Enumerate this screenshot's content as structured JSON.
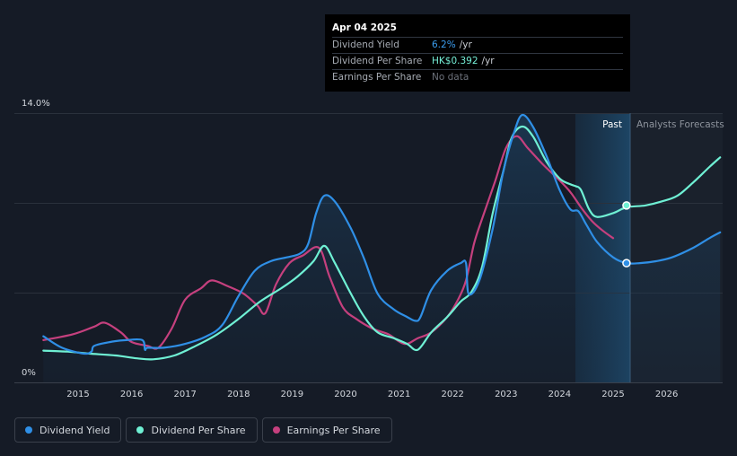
{
  "chart_data": {
    "type": "line",
    "y_axis": {
      "top_label": "14.0%",
      "bottom_label": "0%",
      "ylim": [
        0,
        14
      ]
    },
    "x_axis": {
      "tick_labels": [
        "2015",
        "2016",
        "2017",
        "2018",
        "2019",
        "2020",
        "2021",
        "2022",
        "2023",
        "2024",
        "2025",
        "2026"
      ]
    },
    "zones": {
      "past_label": "Past",
      "forecast_label": "Analysts Forecasts"
    },
    "series": [
      {
        "name": "Dividend Yield",
        "color": "#2f8fe6",
        "x": [
          2014.35,
          2014.7,
          2015.1,
          2015.25,
          2015.3,
          2015.6,
          2015.9,
          2016.2,
          2016.25,
          2016.3,
          2016.6,
          2017.0,
          2017.4,
          2017.7,
          2018.0,
          2018.3,
          2018.6,
          2018.9,
          2019.15,
          2019.3,
          2019.45,
          2019.6,
          2019.8,
          2020.1,
          2020.35,
          2020.6,
          2020.9,
          2021.15,
          2021.3,
          2021.4,
          2021.6,
          2021.9,
          2022.15,
          2022.25,
          2022.3,
          2022.5,
          2022.75,
          2022.95,
          2023.15,
          2023.3,
          2023.5,
          2023.75,
          2024.0,
          2024.2,
          2024.35,
          2024.5,
          2024.7,
          2025.0,
          2025.25,
          2025.5,
          2025.8,
          2026.1,
          2026.5,
          2026.8,
          2027.0
        ],
        "y": [
          2.4,
          1.8,
          1.5,
          1.6,
          1.9,
          2.1,
          2.2,
          2.2,
          1.7,
          1.8,
          1.8,
          2.0,
          2.4,
          3.0,
          4.5,
          5.8,
          6.3,
          6.5,
          6.7,
          7.2,
          8.8,
          9.7,
          9.4,
          8.0,
          6.4,
          4.6,
          3.8,
          3.4,
          3.2,
          3.4,
          4.8,
          5.8,
          6.2,
          6.2,
          4.6,
          5.3,
          8.0,
          11.0,
          13.0,
          13.9,
          13.3,
          11.8,
          10.0,
          9.0,
          8.9,
          8.2,
          7.3,
          6.5,
          6.2,
          6.2,
          6.3,
          6.5,
          7.0,
          7.5,
          7.8
        ]
      },
      {
        "name": "Dividend Per Share",
        "color": "#6ff0d4",
        "x": [
          2014.35,
          2014.8,
          2015.2,
          2015.7,
          2016.1,
          2016.4,
          2016.8,
          2017.2,
          2017.6,
          2018.0,
          2018.4,
          2018.8,
          2019.1,
          2019.4,
          2019.6,
          2019.8,
          2020.1,
          2020.35,
          2020.6,
          2020.9,
          2021.15,
          2021.35,
          2021.6,
          2021.9,
          2022.15,
          2022.35,
          2022.55,
          2022.75,
          2022.95,
          2023.1,
          2023.3,
          2023.5,
          2023.75,
          2024.0,
          2024.2,
          2024.3,
          2024.4,
          2024.55,
          2024.7,
          2025.0,
          2025.25,
          2025.6,
          2025.9,
          2026.2,
          2026.5,
          2026.8,
          2027.0
        ],
        "y": [
          1.65,
          1.6,
          1.5,
          1.4,
          1.25,
          1.2,
          1.4,
          1.9,
          2.5,
          3.3,
          4.2,
          4.9,
          5.5,
          6.3,
          7.1,
          6.2,
          4.6,
          3.4,
          2.6,
          2.3,
          2.0,
          1.7,
          2.6,
          3.4,
          4.2,
          4.7,
          6.0,
          8.8,
          11.0,
          12.7,
          13.3,
          12.8,
          11.5,
          10.6,
          10.3,
          10.2,
          10.0,
          9.0,
          8.6,
          8.8,
          9.1,
          9.2,
          9.4,
          9.7,
          10.4,
          11.2,
          11.7
        ]
      },
      {
        "name": "Earnings Per Share",
        "color": "#c5407e",
        "x": [
          2014.35,
          2014.9,
          2015.3,
          2015.5,
          2015.8,
          2016.0,
          2016.3,
          2016.5,
          2016.75,
          2017.0,
          2017.3,
          2017.5,
          2017.8,
          2018.1,
          2018.35,
          2018.5,
          2018.7,
          2018.95,
          2019.2,
          2019.5,
          2019.7,
          2019.95,
          2020.2,
          2020.5,
          2020.8,
          2021.1,
          2021.35,
          2021.6,
          2021.9,
          2022.1,
          2022.25,
          2022.4,
          2022.55,
          2022.8,
          2023.0,
          2023.2,
          2023.4,
          2023.7,
          2024.0,
          2024.2,
          2024.4,
          2024.6,
          2024.8,
          2025.0
        ],
        "y": [
          2.2,
          2.5,
          2.9,
          3.1,
          2.6,
          2.1,
          1.9,
          1.8,
          2.8,
          4.3,
          4.9,
          5.3,
          5.0,
          4.6,
          4.0,
          3.6,
          5.1,
          6.2,
          6.6,
          7.0,
          5.5,
          3.9,
          3.3,
          2.8,
          2.5,
          2.0,
          2.3,
          2.6,
          3.4,
          4.3,
          5.3,
          7.2,
          8.5,
          10.5,
          12.2,
          12.8,
          12.2,
          11.3,
          10.5,
          9.9,
          9.1,
          8.4,
          7.9,
          7.5
        ]
      }
    ],
    "markers": [
      {
        "series": "Dividend Yield",
        "x": 2025.25,
        "y": 6.2
      },
      {
        "series": "Dividend Per Share",
        "x": 2025.25,
        "y": 9.2
      }
    ]
  },
  "tooltip": {
    "date": "Apr 04 2025",
    "rows": [
      {
        "label": "Dividend Yield",
        "value": "6.2%",
        "unit": "/yr"
      },
      {
        "label": "Dividend Per Share",
        "value": "HK$0.392",
        "unit": "/yr"
      },
      {
        "label": "Earnings Per Share",
        "value": "No data",
        "unit": ""
      }
    ]
  },
  "legend": [
    {
      "label": "Dividend Yield",
      "color": "#2f8fe6"
    },
    {
      "label": "Dividend Per Share",
      "color": "#6ff0d4"
    },
    {
      "label": "Earnings Per Share",
      "color": "#c5407e"
    }
  ]
}
